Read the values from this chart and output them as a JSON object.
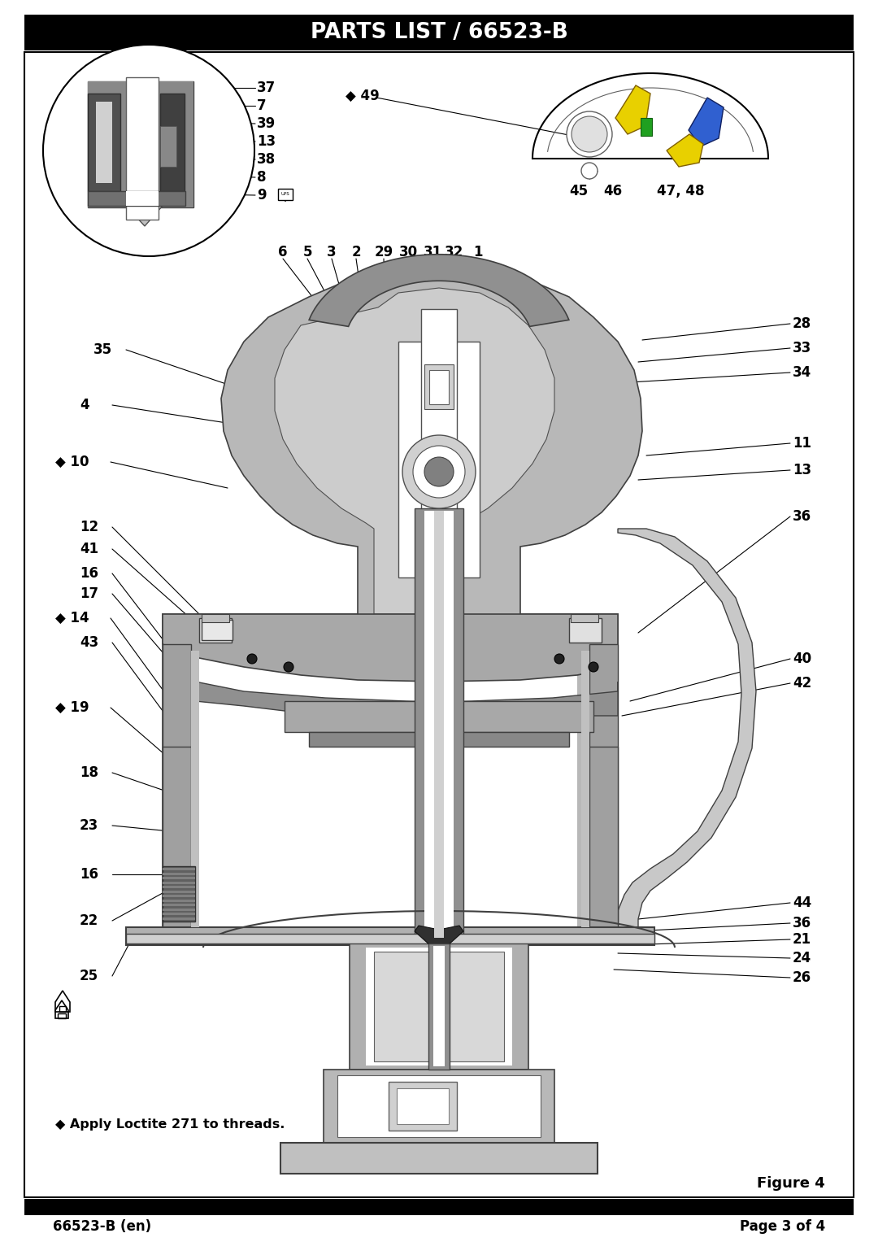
{
  "title": "PARTS LIST / 66523-B",
  "footer_left": "66523-B (en)",
  "footer_right": "Page 3 of 4",
  "figure_label": "Figure 4",
  "bg_color": "#ffffff",
  "title_bg": "#000000",
  "title_fg": "#ffffff",
  "gray_dark": "#707070",
  "gray_mid": "#a0a0a0",
  "gray_light": "#c8c8c8",
  "gray_body": "#b0b0b0",
  "gray_inner": "#d8d8d8",
  "edge_color": "#404040",
  "white": "#ffffff"
}
